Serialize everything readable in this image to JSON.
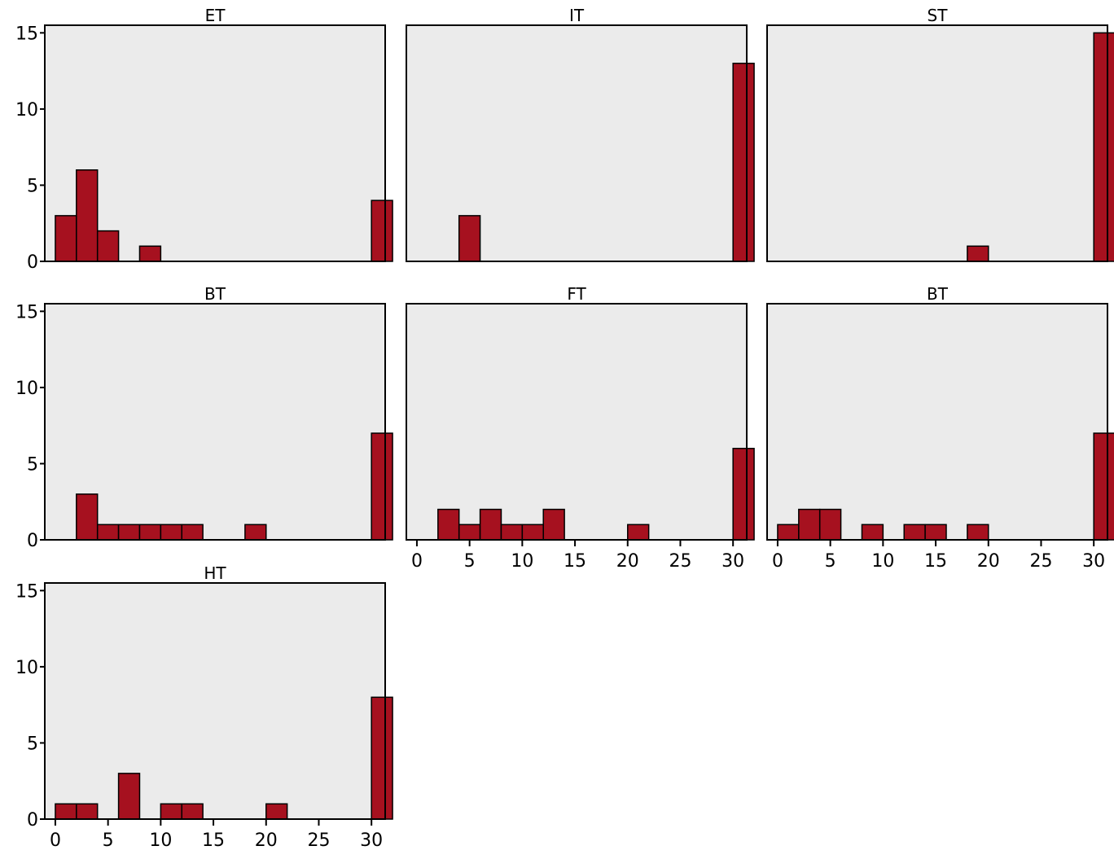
{
  "colors": {
    "bar": "#a6111f",
    "panel_bg": "#ebebeb",
    "axis": "#000000"
  },
  "chart_data": [
    {
      "type": "bar",
      "title": "ET",
      "ylim": [
        0,
        15.5
      ],
      "yticks": [
        0,
        5,
        10,
        15
      ],
      "xlim": [
        -1,
        31.3
      ],
      "xticks": [],
      "bin_width": 2,
      "bars": [
        {
          "x": 0,
          "y": 3
        },
        {
          "x": 2,
          "y": 6
        },
        {
          "x": 4,
          "y": 2
        },
        {
          "x": 8,
          "y": 1
        },
        {
          "x": 30,
          "y": 4
        }
      ]
    },
    {
      "type": "bar",
      "title": "IT",
      "ylim": [
        0,
        15.5
      ],
      "yticks": [],
      "xlim": [
        -1,
        31.3
      ],
      "xticks": [],
      "bin_width": 2,
      "bars": [
        {
          "x": 4,
          "y": 3
        },
        {
          "x": 30,
          "y": 13
        }
      ]
    },
    {
      "type": "bar",
      "title": "ST",
      "ylim": [
        0,
        15.5
      ],
      "yticks": [],
      "xlim": [
        -1,
        31.3
      ],
      "xticks": [],
      "bin_width": 2,
      "bars": [
        {
          "x": 18,
          "y": 1
        },
        {
          "x": 30,
          "y": 15
        }
      ]
    },
    {
      "type": "bar",
      "title": "BT",
      "ylim": [
        0,
        15.5
      ],
      "yticks": [
        0,
        5,
        10,
        15
      ],
      "xlim": [
        -1,
        31.3
      ],
      "xticks": [],
      "bin_width": 2,
      "bars": [
        {
          "x": 2,
          "y": 3
        },
        {
          "x": 4,
          "y": 1
        },
        {
          "x": 6,
          "y": 1
        },
        {
          "x": 8,
          "y": 1
        },
        {
          "x": 10,
          "y": 1
        },
        {
          "x": 12,
          "y": 1
        },
        {
          "x": 18,
          "y": 1
        },
        {
          "x": 30,
          "y": 7
        }
      ]
    },
    {
      "type": "bar",
      "title": "FT",
      "ylim": [
        0,
        15.5
      ],
      "yticks": [],
      "xlim": [
        -1,
        31.3
      ],
      "xticks": [
        0,
        5,
        10,
        15,
        20,
        25,
        30
      ],
      "bin_width": 2,
      "bars": [
        {
          "x": 2,
          "y": 2
        },
        {
          "x": 4,
          "y": 1
        },
        {
          "x": 6,
          "y": 2
        },
        {
          "x": 8,
          "y": 1
        },
        {
          "x": 10,
          "y": 1
        },
        {
          "x": 12,
          "y": 2
        },
        {
          "x": 20,
          "y": 1
        },
        {
          "x": 30,
          "y": 6
        }
      ]
    },
    {
      "type": "bar",
      "title": "BT",
      "ylim": [
        0,
        15.5
      ],
      "yticks": [],
      "xlim": [
        -1,
        31.3
      ],
      "xticks": [
        0,
        5,
        10,
        15,
        20,
        25,
        30
      ],
      "bin_width": 2,
      "bars": [
        {
          "x": 0,
          "y": 1
        },
        {
          "x": 2,
          "y": 2
        },
        {
          "x": 4,
          "y": 2
        },
        {
          "x": 8,
          "y": 1
        },
        {
          "x": 12,
          "y": 1
        },
        {
          "x": 14,
          "y": 1
        },
        {
          "x": 18,
          "y": 1
        },
        {
          "x": 30,
          "y": 7
        }
      ]
    },
    {
      "type": "bar",
      "title": "HT",
      "ylim": [
        0,
        15.5
      ],
      "yticks": [
        0,
        5,
        10,
        15
      ],
      "xlim": [
        -1,
        31.3
      ],
      "xticks": [
        0,
        5,
        10,
        15,
        20,
        25,
        30
      ],
      "bin_width": 2,
      "bars": [
        {
          "x": 0,
          "y": 1
        },
        {
          "x": 2,
          "y": 1
        },
        {
          "x": 6,
          "y": 3
        },
        {
          "x": 10,
          "y": 1
        },
        {
          "x": 12,
          "y": 1
        },
        {
          "x": 20,
          "y": 1
        },
        {
          "x": 30,
          "y": 8
        }
      ]
    }
  ]
}
